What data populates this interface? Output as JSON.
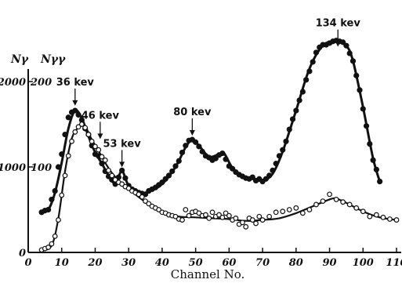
{
  "chart_data": {
    "type": "scatter",
    "title": "",
    "xlabel": "Channel No.",
    "ylabel_left": "Nγ",
    "ylabel_right": "Nγγ",
    "xlim": [
      0,
      110
    ],
    "ylim": [
      0,
      2000
    ],
    "y2lim": [
      0,
      200
    ],
    "grid": false,
    "x_ticks": [
      {
        "v": 0,
        "label": "0"
      },
      {
        "v": 10,
        "label": "10"
      },
      {
        "v": 20,
        "label": "20"
      },
      {
        "v": 30,
        "label": "30"
      },
      {
        "v": 40,
        "label": "40"
      },
      {
        "v": 50,
        "label": "50"
      },
      {
        "v": 60,
        "label": "60"
      },
      {
        "v": 70,
        "label": "70"
      },
      {
        "v": 80,
        "label": "80"
      },
      {
        "v": 90,
        "label": "90"
      },
      {
        "v": 100,
        "label": "100"
      },
      {
        "v": 110,
        "label": "110"
      }
    ],
    "y_ticks_left": [
      {
        "v": 0,
        "label": "0"
      },
      {
        "v": 1000,
        "label": "1000"
      },
      {
        "v": 2000,
        "label": "2000"
      }
    ],
    "y_ticks_right": [
      {
        "v": 100,
        "label": "100"
      },
      {
        "v": 200,
        "label": "200"
      }
    ],
    "annotations": [
      {
        "text": "36 kev",
        "x": 14,
        "y": 1680
      },
      {
        "text": "46 kev",
        "x": 21.5,
        "y": 1290
      },
      {
        "text": "53 kev",
        "x": 28,
        "y": 960
      },
      {
        "text": "80 kev",
        "x": 49,
        "y": 1330
      },
      {
        "text": "134 kev",
        "x": 92.5,
        "y": 2370
      }
    ],
    "series": [
      {
        "marker": "filled",
        "points": [
          [
            4,
            470
          ],
          [
            5,
            490
          ],
          [
            6,
            500
          ],
          [
            7,
            620
          ],
          [
            8,
            720
          ],
          [
            9,
            1000
          ],
          [
            10,
            1150
          ],
          [
            11,
            1380
          ],
          [
            12,
            1580
          ],
          [
            13,
            1640
          ],
          [
            14,
            1660
          ],
          [
            15,
            1610
          ],
          [
            16,
            1550
          ],
          [
            17,
            1450
          ],
          [
            18,
            1380
          ],
          [
            19,
            1250
          ],
          [
            20,
            1150
          ],
          [
            21,
            1130
          ],
          [
            22,
            1040
          ],
          [
            23,
            950
          ],
          [
            24,
            890
          ],
          [
            25,
            850
          ],
          [
            26,
            800
          ],
          [
            27,
            880
          ],
          [
            28,
            960
          ],
          [
            29,
            870
          ],
          [
            30,
            780
          ],
          [
            31,
            740
          ],
          [
            32,
            720
          ],
          [
            33,
            700
          ],
          [
            34,
            690
          ],
          [
            35,
            680
          ],
          [
            36,
            720
          ],
          [
            37,
            740
          ],
          [
            38,
            760
          ],
          [
            39,
            790
          ],
          [
            40,
            820
          ],
          [
            41,
            860
          ],
          [
            42,
            900
          ],
          [
            43,
            950
          ],
          [
            44,
            1010
          ],
          [
            45,
            1070
          ],
          [
            46,
            1170
          ],
          [
            47,
            1250
          ],
          [
            48,
            1310
          ],
          [
            49,
            1320
          ],
          [
            50,
            1290
          ],
          [
            51,
            1240
          ],
          [
            52,
            1180
          ],
          [
            53,
            1130
          ],
          [
            54,
            1110
          ],
          [
            55,
            1080
          ],
          [
            56,
            1100
          ],
          [
            57,
            1140
          ],
          [
            58,
            1160
          ],
          [
            59,
            1090
          ],
          [
            60,
            1010
          ],
          [
            61,
            980
          ],
          [
            62,
            940
          ],
          [
            63,
            910
          ],
          [
            64,
            890
          ],
          [
            65,
            870
          ],
          [
            66,
            860
          ],
          [
            67,
            880
          ],
          [
            68,
            840
          ],
          [
            69,
            860
          ],
          [
            70,
            830
          ],
          [
            71,
            860
          ],
          [
            72,
            900
          ],
          [
            73,
            960
          ],
          [
            74,
            1040
          ],
          [
            75,
            1130
          ],
          [
            76,
            1200
          ],
          [
            77,
            1300
          ],
          [
            78,
            1440
          ],
          [
            79,
            1560
          ],
          [
            80,
            1660
          ],
          [
            81,
            1780
          ],
          [
            82,
            1880
          ],
          [
            83,
            2020
          ],
          [
            84,
            2120
          ],
          [
            85,
            2230
          ],
          [
            86,
            2340
          ],
          [
            87,
            2400
          ],
          [
            88,
            2430
          ],
          [
            89,
            2430
          ],
          [
            90,
            2450
          ],
          [
            91,
            2470
          ],
          [
            92,
            2480
          ],
          [
            93,
            2470
          ],
          [
            94,
            2460
          ],
          [
            95,
            2420
          ],
          [
            96,
            2330
          ],
          [
            97,
            2240
          ],
          [
            98,
            2070
          ],
          [
            99,
            1900
          ],
          [
            100,
            1680
          ],
          [
            101,
            1480
          ],
          [
            102,
            1270
          ],
          [
            103,
            1080
          ],
          [
            104,
            970
          ],
          [
            105,
            830
          ]
        ],
        "curve": [
          [
            3.5,
            460
          ],
          [
            6,
            500
          ],
          [
            8,
            700
          ],
          [
            10,
            1050
          ],
          [
            12,
            1450
          ],
          [
            14,
            1660
          ],
          [
            16,
            1570
          ],
          [
            18,
            1360
          ],
          [
            20,
            1170
          ],
          [
            22,
            1040
          ],
          [
            24,
            900
          ],
          [
            26,
            810
          ],
          [
            28,
            950
          ],
          [
            30,
            780
          ],
          [
            33,
            700
          ],
          [
            36,
            710
          ],
          [
            40,
            800
          ],
          [
            44,
            1000
          ],
          [
            47,
            1230
          ],
          [
            49,
            1320
          ],
          [
            51,
            1250
          ],
          [
            54,
            1120
          ],
          [
            57,
            1150
          ],
          [
            58.5,
            1160
          ],
          [
            61,
            990
          ],
          [
            64,
            900
          ],
          [
            67,
            860
          ],
          [
            70,
            840
          ],
          [
            73,
            920
          ],
          [
            76,
            1180
          ],
          [
            80,
            1660
          ],
          [
            84,
            2150
          ],
          [
            88,
            2420
          ],
          [
            92,
            2470
          ],
          [
            95,
            2420
          ],
          [
            97,
            2240
          ],
          [
            100,
            1700
          ],
          [
            103,
            1100
          ],
          [
            105,
            830
          ]
        ]
      },
      {
        "marker": "open",
        "points": [
          [
            4,
            30
          ],
          [
            5,
            45
          ],
          [
            6,
            60
          ],
          [
            7,
            100
          ],
          [
            8,
            190
          ],
          [
            9,
            380
          ],
          [
            10,
            670
          ],
          [
            11,
            900
          ],
          [
            12,
            1130
          ],
          [
            13,
            1300
          ],
          [
            14,
            1410
          ],
          [
            15,
            1470
          ],
          [
            16,
            1500
          ],
          [
            17,
            1460
          ],
          [
            18,
            1380
          ],
          [
            19,
            1300
          ],
          [
            20,
            1240
          ],
          [
            21,
            1200
          ],
          [
            22,
            1120
          ],
          [
            23,
            1080
          ],
          [
            24,
            960
          ],
          [
            25,
            900
          ],
          [
            26,
            850
          ],
          [
            27,
            820
          ],
          [
            28,
            800
          ],
          [
            29,
            770
          ],
          [
            30,
            750
          ],
          [
            31,
            720
          ],
          [
            32,
            700
          ],
          [
            33,
            680
          ],
          [
            34,
            650
          ],
          [
            35,
            600
          ],
          [
            36,
            570
          ],
          [
            37,
            540
          ],
          [
            38,
            520
          ],
          [
            39,
            500
          ],
          [
            40,
            470
          ],
          [
            41,
            460
          ],
          [
            42,
            440
          ],
          [
            43,
            430
          ],
          [
            44,
            420
          ],
          [
            45,
            390
          ],
          [
            46,
            380
          ],
          [
            47,
            500
          ],
          [
            48,
            430
          ],
          [
            49,
            470
          ],
          [
            50,
            480
          ],
          [
            51,
            460
          ],
          [
            52,
            430
          ],
          [
            53,
            440
          ],
          [
            54,
            400
          ],
          [
            55,
            470
          ],
          [
            56,
            420
          ],
          [
            57,
            440
          ],
          [
            58,
            410
          ],
          [
            59,
            460
          ],
          [
            60,
            430
          ],
          [
            61,
            380
          ],
          [
            62,
            400
          ],
          [
            63,
            330
          ],
          [
            64,
            350
          ],
          [
            65,
            300
          ],
          [
            66,
            400
          ],
          [
            67,
            380
          ],
          [
            68,
            340
          ],
          [
            69,
            420
          ],
          [
            70,
            380
          ],
          [
            72,
            420
          ],
          [
            74,
            470
          ],
          [
            76,
            480
          ],
          [
            78,
            500
          ],
          [
            80,
            520
          ],
          [
            82,
            460
          ],
          [
            84,
            500
          ],
          [
            86,
            560
          ],
          [
            88,
            600
          ],
          [
            90,
            680
          ],
          [
            92,
            620
          ],
          [
            94,
            590
          ],
          [
            96,
            560
          ],
          [
            98,
            520
          ],
          [
            100,
            480
          ],
          [
            102,
            420
          ],
          [
            104,
            440
          ],
          [
            106,
            410
          ],
          [
            108,
            390
          ],
          [
            110,
            380
          ]
        ],
        "curve": [
          [
            4,
            20
          ],
          [
            7,
            80
          ],
          [
            9,
            400
          ],
          [
            11,
            950
          ],
          [
            13,
            1330
          ],
          [
            15,
            1460
          ],
          [
            17,
            1470
          ],
          [
            19,
            1320
          ],
          [
            21,
            1190
          ],
          [
            23,
            1050
          ],
          [
            25,
            930
          ],
          [
            28,
            800
          ],
          [
            31,
            710
          ],
          [
            35,
            590
          ],
          [
            40,
            470
          ],
          [
            45,
            420
          ],
          [
            50,
            410
          ],
          [
            55,
            400
          ],
          [
            60,
            390
          ],
          [
            65,
            370
          ],
          [
            70,
            380
          ],
          [
            75,
            400
          ],
          [
            80,
            460
          ],
          [
            85,
            540
          ],
          [
            90,
            620
          ],
          [
            92,
            630
          ],
          [
            95,
            580
          ],
          [
            100,
            480
          ],
          [
            105,
            410
          ],
          [
            110,
            380
          ]
        ]
      }
    ]
  }
}
